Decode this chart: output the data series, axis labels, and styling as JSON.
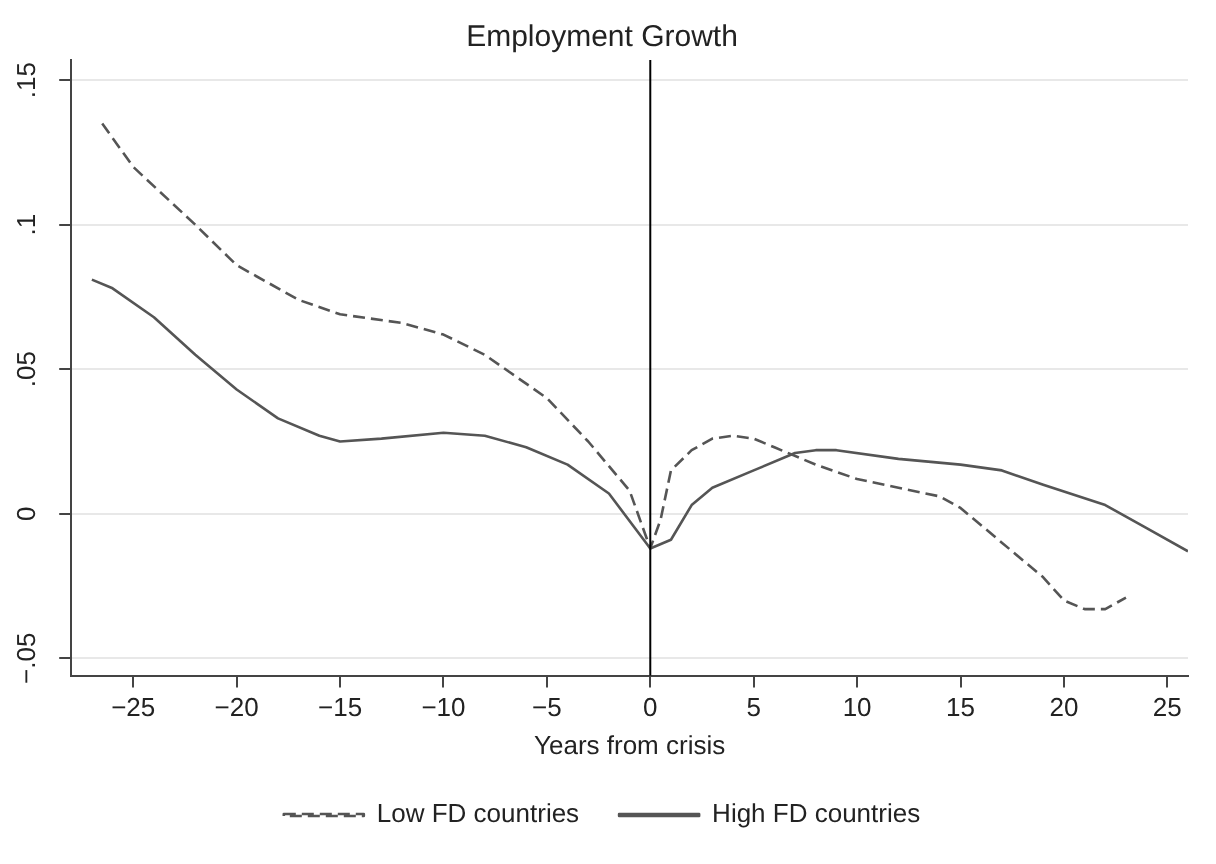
{
  "chart_data": {
    "type": "line",
    "title": "Employment Growth",
    "xlabel": "Years from crisis",
    "xlim": [
      -28,
      26
    ],
    "xticks": [
      {
        "value": -25,
        "label": "−25"
      },
      {
        "value": -20,
        "label": "−20"
      },
      {
        "value": -15,
        "label": "−15"
      },
      {
        "value": -10,
        "label": "−10"
      },
      {
        "value": -5,
        "label": "−5"
      },
      0,
      5,
      10,
      15,
      20,
      25
    ],
    "ylim": [
      -0.056,
      0.157
    ],
    "yticks": [
      {
        "value": -0.05,
        "label": "−.05"
      },
      0,
      {
        "value": 0.05,
        "label": ".05"
      },
      {
        "value": 0.1,
        "label": ".1"
      },
      {
        "value": 0.15,
        "label": ".15"
      }
    ],
    "grid": "y",
    "legend": "bottom",
    "marker": "none",
    "ref_lines": [
      {
        "axis": "x",
        "value": 0,
        "color": "#000000"
      }
    ],
    "series": [
      {
        "name": "Low FD countries",
        "color": "#555555",
        "line_style": "dashed",
        "x": [
          -26.5,
          -25,
          -22,
          -20,
          -17,
          -15,
          -12,
          -10,
          -8,
          -5,
          -3,
          -1,
          0,
          0.5,
          1,
          2,
          3,
          4,
          5,
          6,
          8,
          10,
          12,
          14,
          15,
          17,
          19,
          20,
          21,
          22,
          23
        ],
        "values": [
          0.135,
          0.12,
          0.1,
          0.086,
          0.074,
          0.069,
          0.066,
          0.062,
          0.055,
          0.04,
          0.025,
          0.008,
          -0.012,
          -0.002,
          0.015,
          0.022,
          0.026,
          0.027,
          0.026,
          0.023,
          0.017,
          0.012,
          0.009,
          0.006,
          0.002,
          -0.01,
          -0.022,
          -0.03,
          -0.033,
          -0.033,
          -0.029
        ]
      },
      {
        "name": "High FD countries",
        "color": "#555555",
        "line_style": "solid",
        "x": [
          -27,
          -26,
          -24,
          -22,
          -20,
          -18,
          -16,
          -15,
          -13,
          -10,
          -8,
          -6,
          -4,
          -2,
          0,
          1,
          2,
          3,
          5,
          7,
          8,
          9,
          12,
          15,
          17,
          19,
          22,
          24,
          26
        ],
        "values": [
          0.081,
          0.078,
          0.068,
          0.055,
          0.043,
          0.033,
          0.027,
          0.025,
          0.026,
          0.028,
          0.027,
          0.023,
          0.017,
          0.007,
          -0.012,
          -0.009,
          0.003,
          0.009,
          0.015,
          0.021,
          0.022,
          0.022,
          0.019,
          0.017,
          0.015,
          0.01,
          0.003,
          -0.005,
          -0.013
        ]
      }
    ]
  }
}
